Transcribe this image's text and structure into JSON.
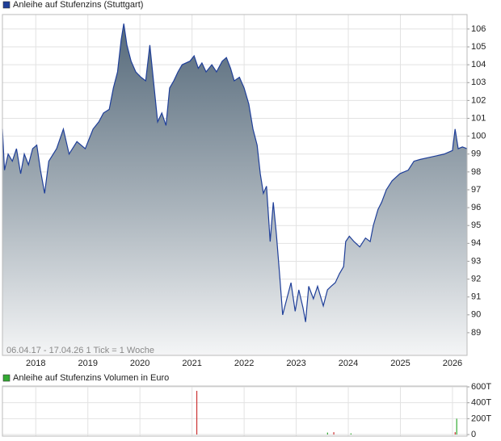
{
  "chart_data": [
    {
      "type": "area",
      "legend": "Anleihe auf Stufenzins (Stuttgart)",
      "note": "06.04.17 - 17.04.26   1 Tick = 1 Woche",
      "color": "#1f3f99",
      "x": [
        2017.36,
        2017.4,
        2017.47,
        2017.55,
        2017.63,
        2017.71,
        2017.78,
        2017.86,
        2017.94,
        2018.02,
        2018.09,
        2018.17,
        2018.25,
        2018.4,
        2018.53,
        2018.64,
        2018.79,
        2018.95,
        2019.1,
        2019.21,
        2019.3,
        2019.41,
        2019.49,
        2019.57,
        2019.64,
        2019.69,
        2019.75,
        2019.83,
        2019.92,
        2020.02,
        2020.11,
        2020.19,
        2020.26,
        2020.34,
        2020.42,
        2020.5,
        2020.57,
        2020.65,
        2020.73,
        2020.81,
        2020.96,
        2021.04,
        2021.12,
        2021.19,
        2021.27,
        2021.38,
        2021.47,
        2021.58,
        2021.66,
        2021.74,
        2021.81,
        2021.91,
        2022.0,
        2022.09,
        2022.17,
        2022.25,
        2022.31,
        2022.37,
        2022.43,
        2022.5,
        2022.56,
        2022.62,
        2022.68,
        2022.74,
        2022.82,
        2022.9,
        2022.98,
        2023.05,
        2023.13,
        2023.18,
        2023.24,
        2023.33,
        2023.41,
        2023.52,
        2023.6,
        2023.67,
        2023.75,
        2023.83,
        2023.91,
        2023.95,
        2024.02,
        2024.11,
        2024.22,
        2024.33,
        2024.42,
        2024.48,
        2024.57,
        2024.64,
        2024.73,
        2024.84,
        2024.99,
        2025.15,
        2025.26,
        2025.38,
        2025.53,
        2025.69,
        2025.84,
        2026.0,
        2026.05,
        2026.11,
        2026.19,
        2026.28
      ],
      "values": [
        100.4,
        98.1,
        99.0,
        98.6,
        99.3,
        97.9,
        99.0,
        98.4,
        99.3,
        99.5,
        98.1,
        96.8,
        98.6,
        99.3,
        100.4,
        99.0,
        99.7,
        99.3,
        100.4,
        100.8,
        101.3,
        101.5,
        102.7,
        103.6,
        105.4,
        106.3,
        105.1,
        104.2,
        103.6,
        103.3,
        103.1,
        105.1,
        103.1,
        100.8,
        101.3,
        100.6,
        102.7,
        103.1,
        103.6,
        104.0,
        104.2,
        104.5,
        103.8,
        104.1,
        103.6,
        104.0,
        103.6,
        104.2,
        104.4,
        103.8,
        103.1,
        103.3,
        102.7,
        101.8,
        100.4,
        99.5,
        97.9,
        96.8,
        97.2,
        94.1,
        96.3,
        94.5,
        92.3,
        90.0,
        90.9,
        91.8,
        90.2,
        91.4,
        90.4,
        89.6,
        91.6,
        90.9,
        91.6,
        90.5,
        91.4,
        91.6,
        91.8,
        92.3,
        92.7,
        94.1,
        94.4,
        94.1,
        93.8,
        94.3,
        94.1,
        95.0,
        95.9,
        96.3,
        97.0,
        97.5,
        97.9,
        98.1,
        98.6,
        98.7,
        98.8,
        98.9,
        99.0,
        99.2,
        100.4,
        99.3,
        99.4,
        99.3
      ],
      "xlim": [
        2017.36,
        2026.28
      ],
      "xticks": [
        2018,
        2019,
        2020,
        2021,
        2022,
        2023,
        2024,
        2025,
        2026
      ],
      "ylim": [
        87.73,
        106.81
      ],
      "yticks": [
        89,
        90,
        91,
        92,
        93,
        94,
        95,
        96,
        97,
        98,
        99,
        100,
        101,
        102,
        103,
        104,
        105,
        106
      ],
      "grid": true
    },
    {
      "type": "bar",
      "legend": "Anleihe auf Stufenzins Volumen in Euro",
      "x": [
        2021.09,
        2023.6,
        2023.72,
        2024.05,
        2026.05,
        2026.08
      ],
      "values": [
        550000,
        25000,
        30000,
        15000,
        30000,
        200000
      ],
      "colors": [
        "#cc3333",
        "#33aa33",
        "#cc3333",
        "#33aa33",
        "#cc3333",
        "#33aa33"
      ],
      "legend_color": "#33aa33",
      "xlim": [
        2017.36,
        2026.28
      ],
      "xticks": [
        2018,
        2019,
        2020,
        2021,
        2022,
        2023,
        2024,
        2025,
        2026
      ],
      "ylim": [
        -20000,
        610000
      ],
      "yticks": [
        0,
        {
          "value": 200000,
          "label": "200T"
        },
        {
          "value": 400000,
          "label": "400T"
        },
        {
          "value": 600000,
          "label": "600T"
        }
      ],
      "grid": true
    }
  ]
}
